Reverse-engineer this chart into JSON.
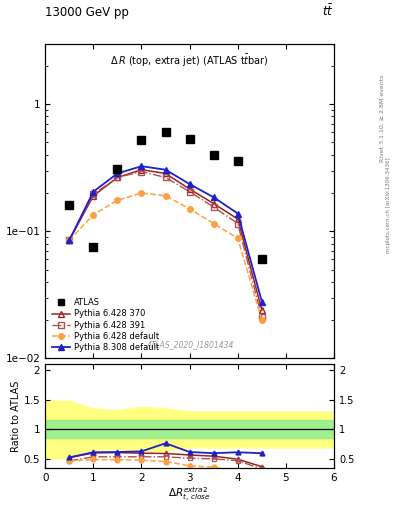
{
  "title_top": "13000 GeV pp",
  "title_top_right": "t$\\bar{t}$",
  "panel_title": "Δ R (top, extra jet) (ATLAS t̄tbar)",
  "watermark": "ATLAS_2020_I1801434",
  "right_label_top": "Rivet 3.1.10, ≥ 2.8M events",
  "right_label_bottom": "mcplots.cern.ch [arXiv:1306.3436]",
  "ylabel_ratio": "Ratio to ATLAS",
  "xlabel": "Δ R^{extra2}_{t,close}",
  "xlim": [
    0,
    6
  ],
  "ylim_main": [
    0.01,
    3.0
  ],
  "ylim_ratio": [
    0.35,
    2.1
  ],
  "atlas_x": [
    0.5,
    1.0,
    1.5,
    2.0,
    2.5,
    3.0,
    3.5,
    4.0,
    4.5
  ],
  "atlas_y": [
    0.16,
    0.075,
    0.31,
    0.52,
    0.6,
    0.53,
    0.4,
    0.36,
    0.06
  ],
  "py6_370_x": [
    0.5,
    1.0,
    1.5,
    2.0,
    2.5,
    3.0,
    3.5,
    4.0,
    4.5
  ],
  "py6_370_y": [
    0.085,
    0.19,
    0.265,
    0.305,
    0.285,
    0.215,
    0.165,
    0.125,
    0.024
  ],
  "py6_391_x": [
    0.5,
    1.0,
    1.5,
    2.0,
    2.5,
    3.0,
    3.5,
    4.0,
    4.5
  ],
  "py6_391_y": [
    0.085,
    0.195,
    0.265,
    0.295,
    0.265,
    0.205,
    0.155,
    0.115,
    0.021
  ],
  "py6_def_x": [
    0.5,
    1.0,
    1.5,
    2.0,
    2.5,
    3.0,
    3.5,
    4.0,
    4.5
  ],
  "py6_def_y": [
    0.085,
    0.135,
    0.175,
    0.2,
    0.19,
    0.15,
    0.115,
    0.088,
    0.02
  ],
  "py8_def_x": [
    0.5,
    1.0,
    1.5,
    2.0,
    2.5,
    3.0,
    3.5,
    4.0,
    4.5
  ],
  "py8_def_y": [
    0.085,
    0.205,
    0.285,
    0.325,
    0.305,
    0.235,
    0.185,
    0.138,
    0.028
  ],
  "ratio_x": [
    0.5,
    1.0,
    1.5,
    2.0,
    2.5,
    3.0,
    3.5,
    4.0,
    4.5
  ],
  "ratio_py6_370": [
    0.53,
    0.61,
    0.615,
    0.605,
    0.6,
    0.575,
    0.555,
    0.505,
    0.38
  ],
  "ratio_py6_391": [
    0.475,
    0.545,
    0.545,
    0.545,
    0.545,
    0.52,
    0.51,
    0.48,
    0.34
  ],
  "ratio_py6_def": [
    0.475,
    0.5,
    0.495,
    0.49,
    0.465,
    0.395,
    0.37,
    0.305,
    0.3
  ],
  "ratio_py8_def": [
    0.535,
    0.62,
    0.625,
    0.635,
    0.77,
    0.625,
    0.605,
    0.62,
    0.605
  ],
  "green_lo": 0.85,
  "green_hi": 1.15,
  "yellow_x": [
    0.0,
    0.5,
    1.0,
    1.5,
    2.0,
    2.5,
    3.0,
    4.5,
    6.0
  ],
  "yellow_lo": [
    0.52,
    0.52,
    0.65,
    0.68,
    0.62,
    0.65,
    0.7,
    0.7,
    0.7
  ],
  "yellow_hi": [
    1.48,
    1.48,
    1.35,
    1.32,
    1.38,
    1.35,
    1.3,
    1.3,
    1.3
  ],
  "color_atlas": "black",
  "color_py6_370": "#9B2222",
  "color_py6_391": "#B05050",
  "color_py6_def": "#FFA040",
  "color_py8_def": "#2020CC"
}
